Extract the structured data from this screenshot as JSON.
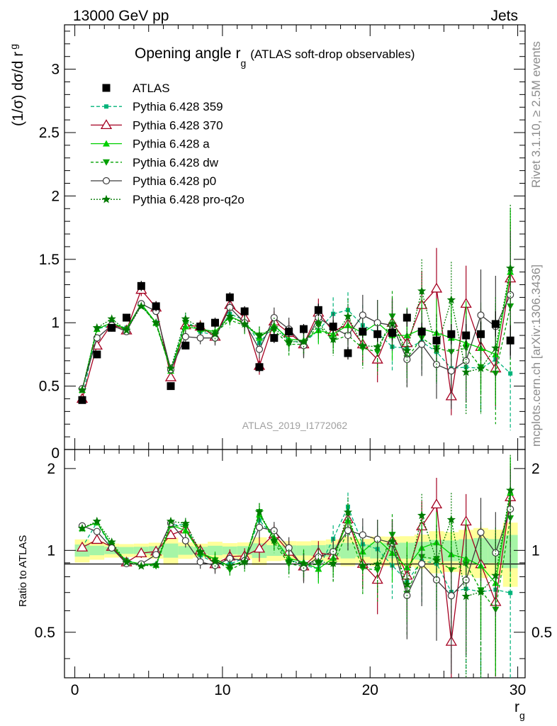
{
  "header": {
    "left": "13000 GeV pp",
    "right": "Jets"
  },
  "side_labels": {
    "rivet": "Rivet 3.1.10, ≥ 2.5M events",
    "mcplots": "mcplots.cern.ch [arXiv:1306.3436]"
  },
  "chart_data": {
    "type": "line",
    "title": "Opening angle r",
    "title_sub": "g",
    "title_suffix": "(ATLAS soft-drop observables)",
    "analysis_id": "ATLAS_2019_I1772062",
    "ylabel_main": "(1/σ) dσ/d r",
    "ylabel_main_sub": "g",
    "ylabel_ratio": "Ratio to ATLAS",
    "xlabel": "r",
    "xlabel_sub": "g",
    "xlim": [
      -0.7,
      30.5
    ],
    "ylim_main": [
      0,
      3.35
    ],
    "ylim_ratio": [
      0.34,
      2.35
    ],
    "x_ticks": [
      "0",
      "10",
      "20",
      "30"
    ],
    "y_ticks_main": [
      "0.5",
      "1",
      "1.5",
      "2",
      "2.5",
      "3"
    ],
    "y_ticks_main_partial": "0",
    "y_ticks_ratio": [
      "0.5",
      "1",
      "2"
    ],
    "x": [
      0.5,
      1.5,
      2.5,
      3.5,
      4.5,
      5.5,
      6.5,
      7.5,
      8.5,
      9.5,
      10.5,
      11.5,
      12.5,
      13.5,
      14.5,
      15.5,
      16.5,
      17.5,
      18.5,
      19.5,
      20.5,
      21.5,
      22.5,
      23.5,
      24.5,
      25.5,
      26.5,
      27.5,
      28.5,
      29.5
    ],
    "data": {
      "name": "ATLAS",
      "values": [
        0.39,
        0.75,
        0.96,
        1.04,
        1.29,
        1.13,
        0.5,
        0.82,
        0.97,
        1.0,
        1.2,
        1.09,
        0.65,
        0.88,
        0.93,
        0.95,
        1.1,
        0.97,
        0.76,
        0.93,
        0.91,
        0.92,
        1.04,
        0.93,
        0.86,
        0.91,
        0.9,
        0.91,
        0.99,
        0.86
      ],
      "errors": [
        0.02,
        0.03,
        0.03,
        0.03,
        0.04,
        0.04,
        0.03,
        0.03,
        0.03,
        0.04,
        0.04,
        0.04,
        0.04,
        0.04,
        0.04,
        0.04,
        0.05,
        0.05,
        0.05,
        0.05,
        0.06,
        0.06,
        0.07,
        0.07,
        0.08,
        0.08,
        0.09,
        0.1,
        0.1,
        0.12
      ]
    },
    "series": [
      {
        "name": "Pythia 6.428 359",
        "color": "#00b37a",
        "dash": "5,3",
        "marker": "square-small",
        "values": [
          0.4,
          0.95,
          0.98,
          0.96,
          1.14,
          1.0,
          0.62,
          1.02,
          0.93,
          0.9,
          1.07,
          1.02,
          0.84,
          0.98,
          0.86,
          0.84,
          0.94,
          1.07,
          1.1,
          0.98,
          0.92,
          0.81,
          0.8,
          0.85,
          0.77,
          0.64,
          0.65,
          0.64,
          0.71,
          0.6
        ],
        "errors": [
          0.02,
          0.03,
          0.03,
          0.03,
          0.04,
          0.04,
          0.04,
          0.05,
          0.05,
          0.06,
          0.06,
          0.07,
          0.07,
          0.08,
          0.09,
          0.1,
          0.11,
          0.13,
          0.14,
          0.16,
          0.18,
          0.2,
          0.22,
          0.25,
          0.27,
          0.3,
          0.33,
          0.36,
          0.4,
          0.45
        ]
      },
      {
        "name": "Pythia 6.428 370",
        "color": "#a50021",
        "dash": "",
        "marker": "triangle-open",
        "values": [
          0.4,
          0.82,
          0.99,
          0.94,
          1.26,
          1.12,
          0.57,
          0.98,
          0.97,
          0.89,
          1.14,
          1.04,
          0.66,
          1.01,
          0.92,
          0.83,
          1.08,
          0.93,
          0.99,
          0.83,
          0.71,
          1.0,
          0.84,
          1.14,
          1.27,
          0.42,
          1.15,
          0.81,
          0.64,
          1.35
        ],
        "errors": [
          0.02,
          0.03,
          0.03,
          0.03,
          0.05,
          0.05,
          0.04,
          0.05,
          0.05,
          0.06,
          0.07,
          0.07,
          0.07,
          0.08,
          0.09,
          0.1,
          0.11,
          0.12,
          0.14,
          0.16,
          0.18,
          0.2,
          0.23,
          0.27,
          0.32,
          0.15,
          0.3,
          0.3,
          0.3,
          0.45
        ]
      },
      {
        "name": "Pythia 6.428 a",
        "color": "#00d000",
        "dash": "",
        "marker": "triangle-up",
        "values": [
          0.47,
          0.95,
          1.0,
          0.95,
          1.15,
          1.0,
          0.62,
          0.97,
          0.95,
          0.93,
          1.05,
          1.0,
          0.88,
          0.98,
          0.87,
          0.86,
          0.94,
          0.91,
          0.98,
          0.92,
          1.0,
          0.9,
          0.9,
          0.95,
          0.92,
          0.88,
          0.84,
          0.8,
          0.75,
          1.4
        ],
        "errors": [
          0.02,
          0.03,
          0.03,
          0.03,
          0.04,
          0.04,
          0.04,
          0.05,
          0.05,
          0.06,
          0.06,
          0.07,
          0.07,
          0.08,
          0.09,
          0.1,
          0.11,
          0.12,
          0.14,
          0.16,
          0.18,
          0.2,
          0.22,
          0.25,
          0.27,
          0.3,
          0.33,
          0.36,
          0.4,
          0.5
        ]
      },
      {
        "name": "Pythia 6.428 dw",
        "color": "#00a000",
        "dash": "4,3",
        "marker": "triangle-down",
        "values": [
          0.47,
          0.95,
          1.0,
          0.94,
          1.14,
          0.99,
          0.62,
          1.0,
          0.94,
          0.92,
          1.02,
          0.98,
          0.9,
          0.94,
          0.83,
          0.83,
          0.98,
          0.86,
          0.9,
          0.8,
          0.77,
          1.05,
          0.72,
          0.88,
          0.8,
          0.77,
          0.8,
          0.65,
          0.6,
          1.13
        ],
        "errors": [
          0.02,
          0.03,
          0.03,
          0.03,
          0.04,
          0.04,
          0.04,
          0.05,
          0.05,
          0.06,
          0.06,
          0.07,
          0.07,
          0.08,
          0.09,
          0.1,
          0.11,
          0.12,
          0.14,
          0.16,
          0.18,
          0.2,
          0.22,
          0.25,
          0.27,
          0.3,
          0.33,
          0.36,
          0.4,
          0.5
        ]
      },
      {
        "name": "Pythia 6.428 p0",
        "color": "#3c3c3c",
        "dash": "",
        "marker": "circle-open",
        "values": [
          0.48,
          0.88,
          0.98,
          0.93,
          1.15,
          1.09,
          0.63,
          0.89,
          0.88,
          0.88,
          1.12,
          1.0,
          0.79,
          1.04,
          0.95,
          0.82,
          1.04,
          0.96,
          0.9,
          1.06,
          1.0,
          0.98,
          0.71,
          0.83,
          0.67,
          0.62,
          0.7,
          1.06,
          0.97,
          1.22
        ],
        "errors": [
          0.02,
          0.03,
          0.03,
          0.03,
          0.04,
          0.04,
          0.04,
          0.05,
          0.05,
          0.06,
          0.06,
          0.07,
          0.07,
          0.08,
          0.09,
          0.1,
          0.11,
          0.12,
          0.14,
          0.16,
          0.18,
          0.2,
          0.22,
          0.25,
          0.27,
          0.3,
          0.33,
          0.36,
          0.4,
          0.5
        ]
      },
      {
        "name": "Pythia 6.428 pro-q2o",
        "color": "#007a00",
        "dash": "2,2",
        "marker": "star",
        "values": [
          0.47,
          0.96,
          1.03,
          0.94,
          1.13,
          1.0,
          0.64,
          1.03,
          0.96,
          0.91,
          1.05,
          0.99,
          0.9,
          0.96,
          0.85,
          0.85,
          1.0,
          0.87,
          1.05,
          0.82,
          0.81,
          0.99,
          0.78,
          1.25,
          0.79,
          1.18,
          0.61,
          0.64,
          0.8,
          1.43
        ],
        "errors": [
          0.02,
          0.03,
          0.03,
          0.03,
          0.04,
          0.04,
          0.04,
          0.05,
          0.05,
          0.06,
          0.06,
          0.07,
          0.07,
          0.08,
          0.09,
          0.1,
          0.11,
          0.12,
          0.14,
          0.16,
          0.18,
          0.2,
          0.22,
          0.25,
          0.27,
          0.3,
          0.33,
          0.36,
          0.4,
          0.5
        ]
      }
    ]
  }
}
